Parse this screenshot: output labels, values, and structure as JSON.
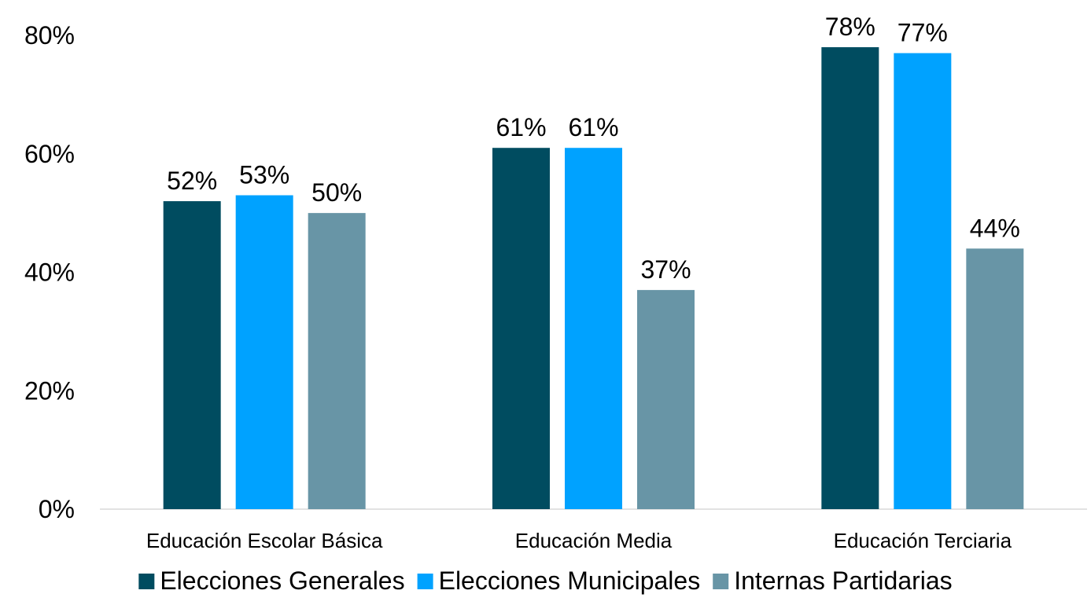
{
  "chart_data": {
    "type": "bar",
    "title": "",
    "xlabel": "",
    "ylabel": "",
    "categories": [
      "Educación Escolar Básica",
      "Educación Media",
      "Educación Terciaria"
    ],
    "series": [
      {
        "name": "Elecciones Generales",
        "color": "#004c60",
        "values": [
          52,
          61,
          78
        ],
        "labels": [
          "52%",
          "61%",
          "78%"
        ]
      },
      {
        "name": "Elecciones Municipales",
        "color": "#00a2ff",
        "values": [
          53,
          61,
          77
        ],
        "labels": [
          "53%",
          "61%",
          "77%"
        ]
      },
      {
        "name": "Internas Partidarias",
        "color": "#6895a6",
        "values": [
          50,
          37,
          44
        ],
        "labels": [
          "50%",
          "37%",
          "44%"
        ]
      }
    ],
    "ylim": [
      0,
      80
    ],
    "yticks": [
      0,
      20,
      40,
      60,
      80
    ],
    "ytick_labels": [
      "0%",
      "20%",
      "40%",
      "60%",
      "80%"
    ],
    "grid": false,
    "legend_position": "bottom",
    "axis_color": "#d9d9d9"
  }
}
